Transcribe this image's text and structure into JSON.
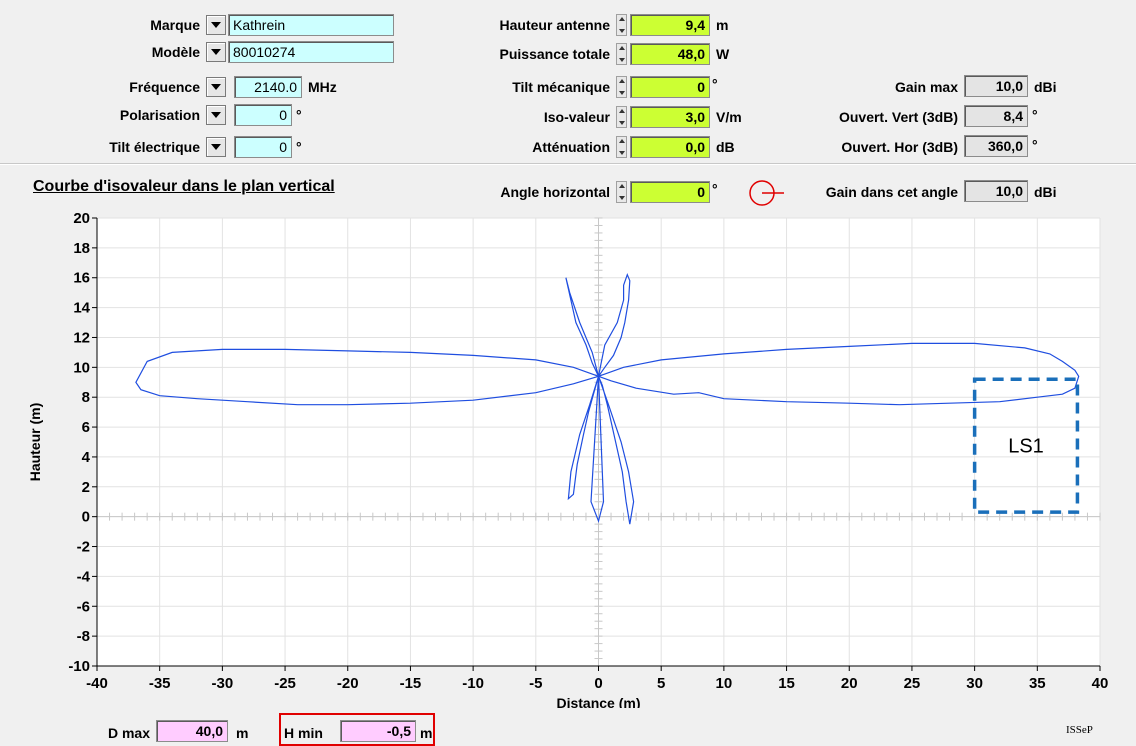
{
  "params": {
    "marque": {
      "label": "Marque",
      "value": "Kathrein"
    },
    "modele": {
      "label": "Modèle",
      "value": "80010274"
    },
    "frequence": {
      "label": "Fréquence",
      "value": "2140.0",
      "unit": "MHz"
    },
    "polarisation": {
      "label": "Polarisation",
      "value": "0",
      "unit": "°"
    },
    "tilt_electrique": {
      "label": "Tilt électrique",
      "value": "0",
      "unit": "°"
    },
    "hauteur_antenne": {
      "label": "Hauteur antenne",
      "value": "9,4",
      "unit": "m"
    },
    "puissance_totale": {
      "label": "Puissance totale",
      "value": "48,0",
      "unit": "W"
    },
    "tilt_mecanique": {
      "label": "Tilt mécanique",
      "value": "0",
      "unit": "°"
    },
    "iso_valeur": {
      "label": "Iso-valeur",
      "value": "3,0",
      "unit": "V/m"
    },
    "attenuation": {
      "label": "Atténuation",
      "value": "0,0",
      "unit": "dB"
    },
    "gain_max": {
      "label": "Gain max",
      "value": "10,0",
      "unit": "dBi"
    },
    "ouvert_vert": {
      "label": "Ouvert. Vert (3dB)",
      "value": "8,4",
      "unit": "°"
    },
    "ouvert_hor": {
      "label": "Ouvert. Hor (3dB)",
      "value": "360,0",
      "unit": "°"
    }
  },
  "plot_header": {
    "title": "Courbe d'isovaleur dans le plan vertical",
    "angle_horizontal": {
      "label": "Angle horizontal",
      "value": "0",
      "unit": "°"
    },
    "gain_angle": {
      "label": "Gain dans cet angle",
      "value": "10,0",
      "unit": "dBi"
    }
  },
  "footer": {
    "dmax": {
      "label": "D max",
      "value": "40,0",
      "unit": "m"
    },
    "hmin": {
      "label": "H min",
      "value": "-0,5",
      "unit": "m"
    },
    "brand": "ISSeP"
  },
  "colors": {
    "curve": "#1f4ee0",
    "annotation": "#1a6fba",
    "cyan_field": "#ccffff",
    "lime_field": "#ccff33",
    "pink_field": "#ffccff",
    "highlight_border": "#e00000"
  },
  "chart_data": {
    "type": "line",
    "xlabel": "Distance (m)",
    "ylabel": "Hauteur (m)",
    "xlim": [
      -40,
      40
    ],
    "ylim": [
      -10,
      20
    ],
    "xticks": [
      -40,
      -35,
      -30,
      -25,
      -20,
      -15,
      -10,
      -5,
      0,
      5,
      10,
      15,
      20,
      25,
      30,
      35,
      40
    ],
    "yticks": [
      -10,
      -8,
      -6,
      -4,
      -2,
      0,
      2,
      4,
      6,
      8,
      10,
      12,
      14,
      16,
      18,
      20
    ],
    "grid": true,
    "series": [
      {
        "x": [
          0,
          2,
          5,
          10,
          15,
          20,
          25,
          30,
          34,
          36,
          37,
          38,
          38.3,
          38,
          37,
          35,
          32,
          28,
          24,
          20,
          15,
          10,
          8,
          6,
          3,
          1,
          0
        ],
        "y": [
          9.4,
          10.0,
          10.5,
          10.9,
          11.2,
          11.4,
          11.6,
          11.6,
          11.3,
          10.9,
          10.4,
          9.8,
          9.4,
          8.6,
          8.2,
          8.0,
          7.7,
          7.6,
          7.5,
          7.6,
          7.7,
          7.9,
          8.3,
          8.2,
          8.6,
          9.1,
          9.4
        ]
      },
      {
        "x": [
          0,
          -2,
          -5,
          -10,
          -15,
          -20,
          -25,
          -30,
          -34,
          -36,
          -36.9,
          -36.5,
          -35,
          -32,
          -28,
          -24,
          -20,
          -15,
          -10,
          -5,
          -2,
          0
        ],
        "y": [
          9.4,
          10.0,
          10.5,
          10.8,
          11.0,
          11.1,
          11.2,
          11.2,
          11.0,
          10.4,
          9.0,
          8.5,
          8.1,
          7.9,
          7.7,
          7.5,
          7.5,
          7.6,
          7.8,
          8.3,
          8.9,
          9.4
        ]
      },
      {
        "x": [
          0,
          0.5,
          1.5,
          2.0,
          2.0,
          2.3,
          2.5,
          2.4,
          2.1,
          1.8,
          1.2,
          0.5,
          0
        ],
        "y": [
          9.4,
          11.5,
          13.0,
          14.5,
          15.5,
          16.2,
          15.8,
          14.5,
          13.0,
          12.0,
          10.8,
          10.0,
          9.4
        ]
      },
      {
        "x": [
          0,
          -0.5,
          -1.5,
          -2.3,
          -2.6,
          -2.2,
          -1.8,
          -1.0,
          -0.5,
          0
        ],
        "y": [
          9.4,
          11.0,
          13.0,
          15.0,
          16.0,
          14.5,
          13.0,
          11.5,
          10.3,
          9.4
        ]
      },
      {
        "x": [
          0,
          0.8,
          1.8,
          2.4,
          2.8,
          2.5,
          2.2,
          1.9,
          1.5,
          1.1,
          0.7,
          0.3,
          0
        ],
        "y": [
          9.4,
          7.5,
          5.0,
          3.0,
          1.0,
          -0.5,
          1.0,
          3.0,
          4.5,
          6.0,
          7.5,
          8.8,
          9.4
        ]
      },
      {
        "x": [
          0,
          -0.7,
          -1.5,
          -2.2,
          -2.4,
          -2.0,
          -1.7,
          -1.2,
          -0.8,
          -0.3,
          0
        ],
        "y": [
          9.4,
          7.5,
          5.5,
          3.0,
          1.2,
          1.5,
          3.5,
          5.5,
          7.0,
          8.5,
          9.4
        ]
      },
      {
        "x": [
          0,
          -0.6,
          0,
          0.4,
          0
        ],
        "y": [
          9.4,
          1.0,
          -0.3,
          1.0,
          9.4
        ]
      }
    ]
  },
  "annotation": {
    "label": "LS1"
  }
}
